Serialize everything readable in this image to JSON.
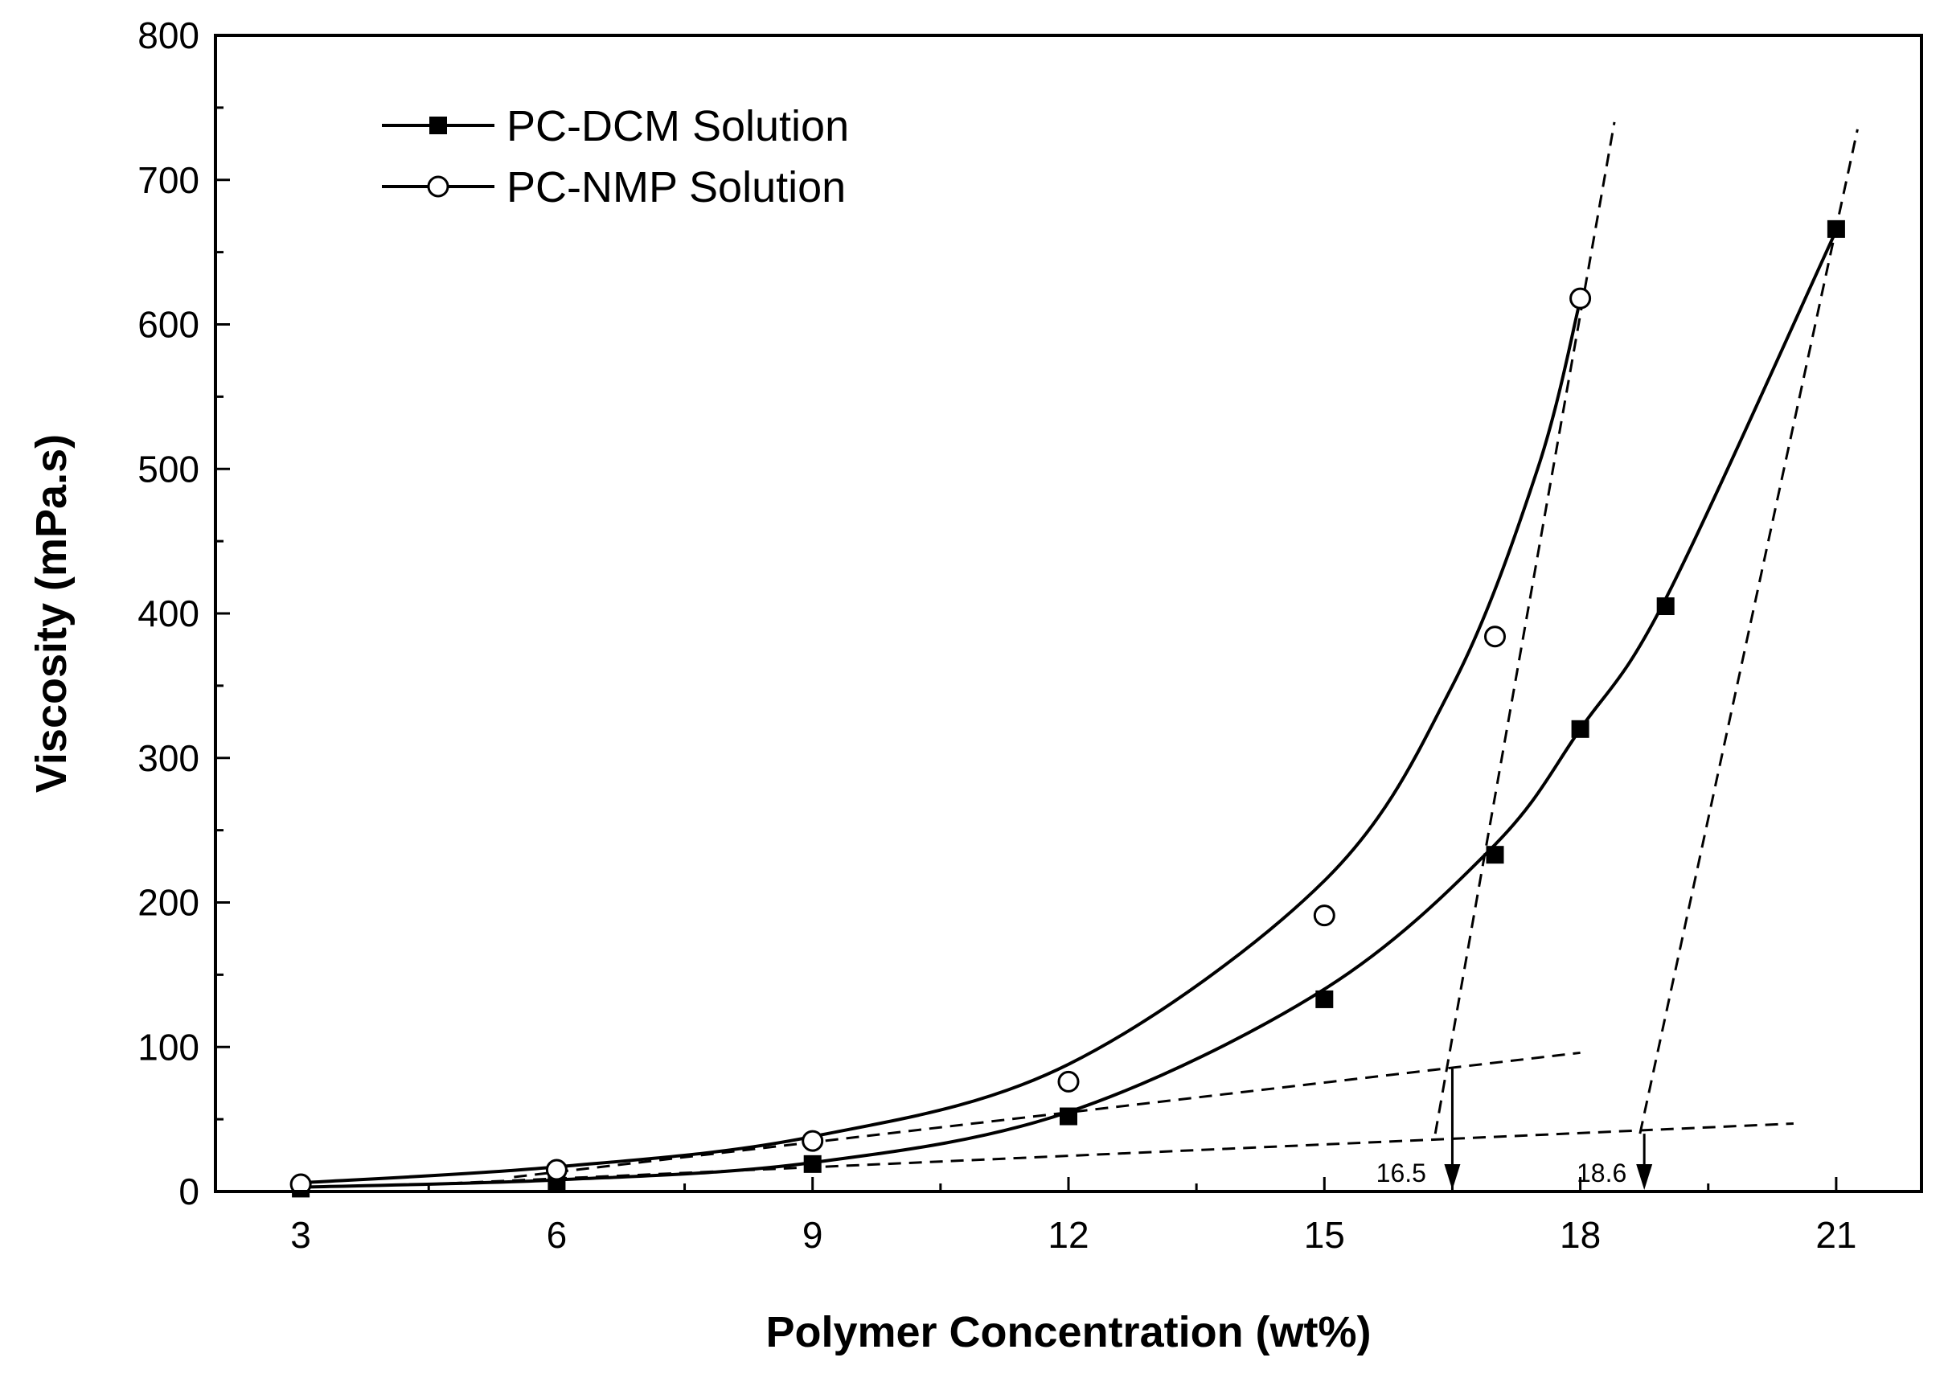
{
  "chart_data": {
    "type": "scatter",
    "xlabel": "Polymer Concentration (wt%)",
    "ylabel": "Viscosity (mPa.s)",
    "xlim": [
      2,
      22
    ],
    "ylim": [
      0,
      800
    ],
    "xticks": [
      3,
      6,
      9,
      12,
      15,
      18,
      21
    ],
    "yticks": [
      0,
      100,
      200,
      300,
      400,
      500,
      600,
      700,
      800
    ],
    "grid": false,
    "legend_position": "top-left",
    "series": [
      {
        "name": "PC-DCM Solution",
        "marker": "filled-square",
        "x": [
          3,
          6,
          9,
          12,
          15,
          17,
          18,
          19,
          21
        ],
        "y": [
          2,
          5,
          19,
          52,
          133,
          233,
          320,
          405,
          666
        ],
        "fit_curve": [
          [
            3,
            3
          ],
          [
            6,
            8
          ],
          [
            9,
            20
          ],
          [
            12,
            55
          ],
          [
            15,
            140
          ],
          [
            17,
            240
          ],
          [
            18,
            320
          ],
          [
            19,
            410
          ],
          [
            21,
            665
          ]
        ]
      },
      {
        "name": "PC-NMP Solution",
        "marker": "open-circle",
        "x": [
          3,
          6,
          9,
          12,
          15,
          17,
          18
        ],
        "y": [
          5,
          15,
          35,
          76,
          191,
          384,
          618
        ],
        "fit_curve": [
          [
            3,
            6
          ],
          [
            6,
            17
          ],
          [
            9,
            38
          ],
          [
            12,
            88
          ],
          [
            15,
            215
          ],
          [
            16.5,
            350
          ],
          [
            17.5,
            500
          ],
          [
            18,
            617
          ]
        ]
      }
    ],
    "tangent_lines": [
      {
        "from": [
          5.5,
          10
        ],
        "to": [
          18,
          96
        ]
      },
      {
        "from": [
          16.3,
          40
        ],
        "to": [
          18.4,
          740
        ]
      },
      {
        "from": [
          4.5,
          5
        ],
        "to": [
          20.5,
          47
        ]
      },
      {
        "from": [
          18.7,
          40
        ],
        "to": [
          21.25,
          735
        ]
      }
    ],
    "annotations": [
      {
        "text": "16.5",
        "x": 16.5,
        "label_x": 15.9,
        "line_top": 85
      },
      {
        "text": "18.6",
        "x": 18.75,
        "label_x": 18.25,
        "line_top": 40
      }
    ]
  }
}
